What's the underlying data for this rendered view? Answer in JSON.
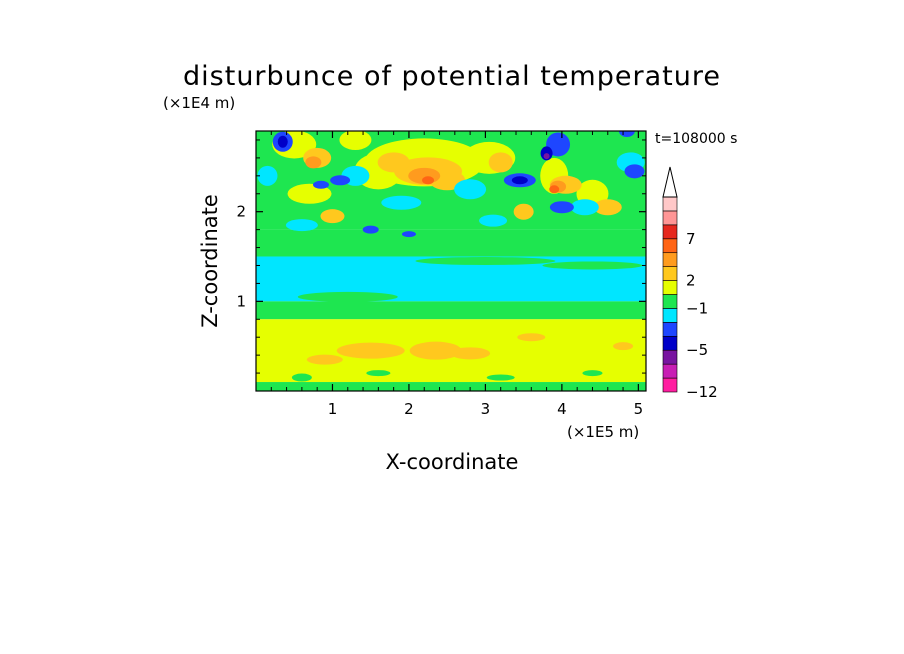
{
  "chart_data": {
    "type": "heatmap",
    "title": "disturbunce of potential temperature",
    "xlabel": "X-coordinate",
    "ylabel": "Z-coordinate",
    "x_unit": "(×1E5 m)",
    "y_unit": "(×1E4 m)",
    "time_label": "t=108000 s",
    "x_ticks": [
      "1",
      "2",
      "3",
      "4",
      "5"
    ],
    "y_ticks": [
      "1",
      "2"
    ],
    "xlim": [
      0,
      5.1
    ],
    "ylim": [
      0,
      2.9
    ],
    "colorbar": {
      "tick_labels": [
        "7",
        "2",
        "−1",
        "−5",
        "−12"
      ],
      "extend": "max",
      "colors": [
        "#ff1ea0",
        "#c81eb4",
        "#7814a0",
        "#0000c8",
        "#1e46ff",
        "#00e6ff",
        "#1ee650",
        "#e6ff00",
        "#ffc81e",
        "#ff9b1e",
        "#ff6414",
        "#e6281e",
        "#ff9696",
        "#ffc8c8"
      ]
    },
    "bands": [
      {
        "z_range": [
          0.0,
          0.1
        ],
        "level": "green-yellow mix"
      },
      {
        "z_range": [
          0.1,
          0.8
        ],
        "level": "yellow with orange patches"
      },
      {
        "z_range": [
          0.8,
          1.0
        ],
        "level": "green"
      },
      {
        "z_range": [
          1.0,
          1.5
        ],
        "level": "cyan"
      },
      {
        "z_range": [
          1.5,
          1.8
        ],
        "level": "green"
      },
      {
        "z_range": [
          1.8,
          2.9
        ],
        "level": "wavy mix of orange, yellow, green, cyan and blue"
      }
    ]
  }
}
